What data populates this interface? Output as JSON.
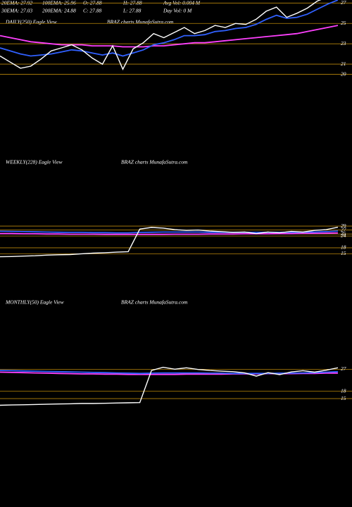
{
  "header": {
    "items": [
      [
        "20EMA: 27.92",
        "100EMA: 25.96",
        "O: 27.88",
        "H: 27.88",
        "Avg Vol: 0.004  M"
      ],
      [
        "30EMA: 27.03",
        "200EMA: 24.88",
        "C: 27.88",
        "L: 27.88",
        "Day Vol: 0  M"
      ]
    ]
  },
  "chart_data": [
    {
      "type": "line",
      "title": "DAILY(250) Eagle  View",
      "subtitle": "BRAZ charts MunafaSutra.com",
      "ylim": [
        19,
        27.3
      ],
      "yticks": [
        27,
        25,
        23,
        21,
        20
      ],
      "grid": true,
      "grid_color": "#b8860b",
      "series": [
        {
          "color": "#ff40ff",
          "values": [
            23.8,
            23.6,
            23.4,
            23.2,
            23.1,
            23.0,
            22.9,
            22.9,
            22.9,
            22.8,
            22.8,
            22.8,
            22.7,
            22.7,
            22.7,
            22.8,
            22.8,
            22.9,
            23.0,
            23.1,
            23.1,
            23.2,
            23.3,
            23.4,
            23.5,
            23.6,
            23.7,
            23.8,
            23.9,
            24.0,
            24.2,
            24.4,
            24.6,
            24.8
          ]
        },
        {
          "color": "#3060ff",
          "values": [
            22.6,
            22.3,
            22.0,
            21.8,
            21.9,
            22.0,
            22.2,
            22.4,
            22.3,
            22.1,
            21.9,
            22.1,
            21.8,
            22.1,
            22.4,
            22.9,
            23.1,
            23.4,
            23.8,
            23.8,
            23.9,
            24.2,
            24.3,
            24.5,
            24.6,
            24.9,
            25.4,
            25.8,
            25.5,
            25.6,
            25.9,
            26.4,
            26.9,
            27.3
          ]
        },
        {
          "color": "#ffffff",
          "values": [
            21.8,
            21.2,
            20.6,
            20.8,
            21.5,
            22.3,
            22.6,
            22.9,
            22.4,
            21.6,
            21.0,
            22.8,
            20.5,
            22.5,
            23.1,
            24.0,
            23.6,
            24.1,
            24.6,
            24.0,
            24.3,
            24.8,
            24.6,
            25.0,
            24.9,
            25.4,
            26.2,
            26.6,
            25.6,
            26.0,
            26.5,
            27.2,
            27.6,
            27.9
          ]
        }
      ]
    },
    {
      "type": "line",
      "title": "WEEKLY(228) Eagle  View",
      "subtitle": "BRAZ charts MunafaSutra.com",
      "ylim": [
        8,
        36.5
      ],
      "yticks": [
        29,
        27,
        25,
        24,
        18,
        15
      ],
      "grid": true,
      "grid_color": "#b8860b",
      "series": [
        {
          "color": "#ff40ff",
          "values": [
            25.2,
            25.2,
            25.1,
            25.1,
            25.0,
            25.0,
            24.9,
            24.9,
            24.9,
            24.8,
            24.8,
            24.8,
            24.8,
            24.8,
            24.8,
            24.9,
            24.9,
            24.9,
            25.0,
            25.0,
            25.0,
            25.1,
            25.1,
            25.1,
            25.2,
            25.2,
            25.3,
            25.3,
            25.4,
            25.5
          ]
        },
        {
          "color": "#3060ff",
          "values": [
            26.4,
            26.3,
            26.2,
            26.1,
            26.0,
            25.9,
            25.8,
            25.8,
            25.7,
            25.7,
            25.6,
            25.6,
            25.8,
            25.9,
            26.0,
            26.0,
            26.0,
            26.0,
            25.9,
            25.9,
            25.8,
            25.8,
            25.8,
            25.8,
            25.8,
            25.9,
            25.9,
            26.0,
            26.2,
            26.5
          ]
        },
        {
          "color": "#ffffff",
          "values": [
            13.5,
            13.6,
            13.8,
            14.0,
            14.3,
            14.5,
            14.6,
            15.0,
            15.3,
            15.5,
            15.8,
            16.0,
            27.5,
            28.3,
            28.0,
            27.2,
            26.8,
            27.0,
            26.5,
            26.2,
            25.8,
            26.0,
            25.2,
            26.0,
            25.6,
            26.3,
            26.0,
            26.8,
            27.2,
            28.4
          ]
        }
      ]
    },
    {
      "type": "line",
      "title": "MONTHLY(50) Eagle  View",
      "subtitle": "BRAZ charts MunafaSutra.com",
      "ylim": [
        11,
        34
      ],
      "yticks": [
        27,
        18,
        15
      ],
      "grid": true,
      "grid_color": "#b8860b",
      "series": [
        {
          "color": "#ff40ff",
          "values": [
            25.8,
            25.7,
            25.6,
            25.5,
            25.4,
            25.3,
            25.2,
            25.1,
            25.1,
            25.0,
            25.0,
            24.9,
            24.9,
            24.9,
            24.9,
            24.9,
            25.0,
            25.0,
            25.0,
            25.0,
            25.1,
            25.1,
            25.1,
            25.2,
            25.2,
            25.2,
            25.3,
            25.3,
            25.4,
            25.4
          ]
        },
        {
          "color": "#3060ff",
          "values": [
            26.5,
            26.4,
            26.3,
            26.2,
            26.1,
            26.0,
            25.9,
            25.8,
            25.7,
            25.6,
            25.5,
            25.4,
            25.3,
            25.4,
            25.5,
            25.5,
            25.5,
            25.5,
            25.4,
            25.4,
            25.3,
            25.3,
            25.3,
            25.3,
            25.4,
            25.4,
            25.5,
            25.6,
            25.8,
            26.0
          ]
        },
        {
          "color": "#ffffff",
          "values": [
            12.3,
            12.4,
            12.5,
            12.6,
            12.7,
            12.8,
            12.9,
            13.0,
            13.0,
            13.1,
            13.2,
            13.3,
            13.4,
            26.5,
            27.8,
            27.0,
            27.6,
            26.9,
            26.5,
            26.2,
            26.0,
            25.5,
            24.2,
            25.6,
            24.8,
            25.9,
            26.4,
            25.8,
            26.6,
            27.6
          ]
        }
      ]
    }
  ]
}
